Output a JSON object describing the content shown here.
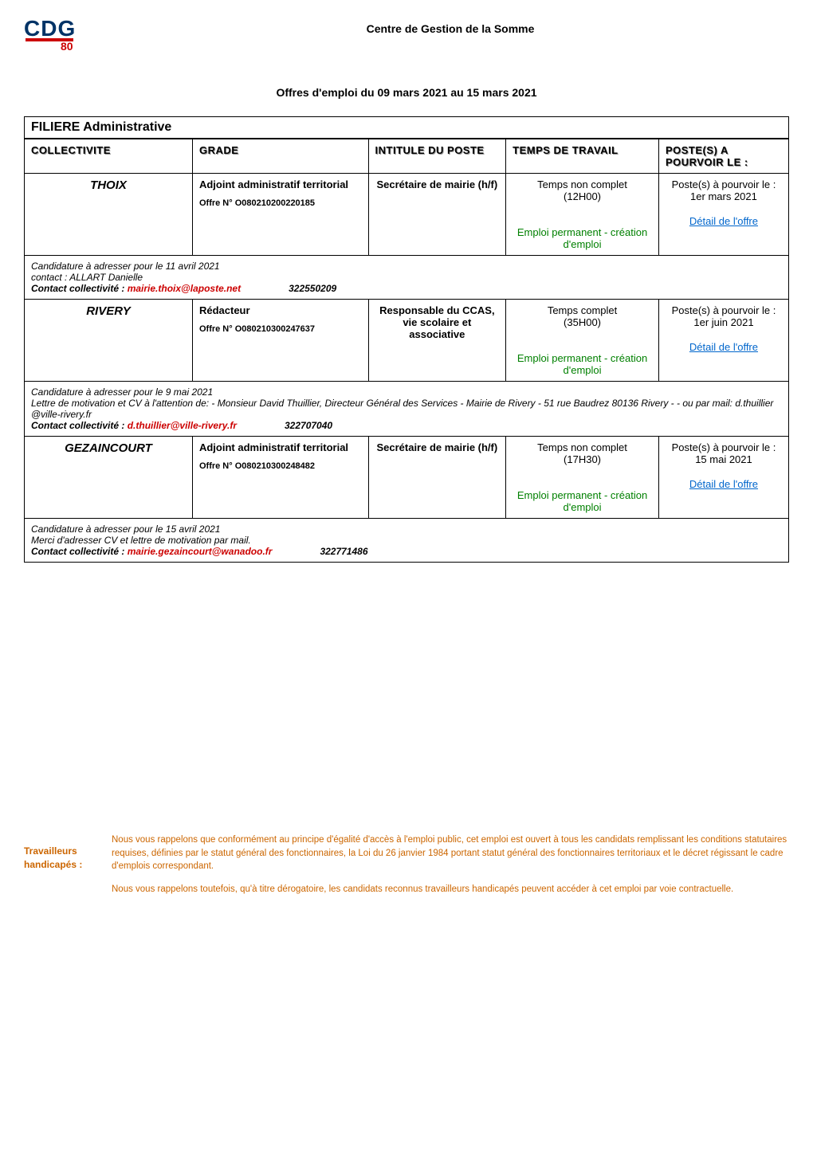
{
  "header": {
    "logo_text": "CDG",
    "logo_sub": "80",
    "doc_title": "Centre de Gestion de la Somme",
    "doc_subtitle": "Offres d'emploi du 09 mars 2021 au 15 mars 2021"
  },
  "filiere_label": "FILIERE Administrative",
  "columns": {
    "col1": "COLLECTIVITE",
    "col2": "GRADE",
    "col3": "INTITULE DU POSTE",
    "col4": "TEMPS DE TRAVAIL",
    "col5": "POSTE(S) A POURVOIR LE :"
  },
  "jobs": [
    {
      "collectivite": "THOIX",
      "grade": "Adjoint administratif territorial",
      "offre_num": "Offre N° O080210200220185",
      "intitule": "Secrétaire de mairie (h/f)",
      "temps": "Temps non complet",
      "temps_detail": "(12H00)",
      "emploi": "Emploi permanent - création d'emploi",
      "poste_line1": "Poste(s) à pourvoir le :",
      "poste_date": "1er mars 2021",
      "detail_link": "Détail de l'offre",
      "candidature_line1": "Candidature à adresser pour le 11 avril 2021",
      "candidature_line2_prefix": "contact : ALLART Danielle",
      "contact_label": "Contact collectivité : ",
      "contact_email": "mairie.thoix@laposte.net",
      "ref_code": "322550209"
    },
    {
      "collectivite": "RIVERY",
      "grade": "Rédacteur",
      "offre_num": "Offre N° O080210300247637",
      "intitule": "Responsable du CCAS, vie scolaire et associative",
      "temps": "Temps complet",
      "temps_detail": "(35H00)",
      "emploi": "Emploi permanent - création d'emploi",
      "poste_line1": "Poste(s) à pourvoir le :",
      "poste_date": "1er juin 2021",
      "detail_link": "Détail de l'offre",
      "candidature_line1": "Candidature à adresser pour le 9 mai 2021",
      "candidature_line2_prefix": " Lettre de motivation et CV à l'attention de: - Monsieur David Thuillier, Directeur Général des Services - Mairie de Rivery  - 51 rue Baudrez  80136 Rivery -  - ou par mail: d.thuillier @ville-rivery.fr",
      "contact_label": "Contact collectivité : ",
      "contact_email": "d.thuillier@ville-rivery.fr",
      "ref_code": "322707040"
    },
    {
      "collectivite": "GEZAINCOURT",
      "grade": "Adjoint administratif territorial",
      "offre_num": "Offre N° O080210300248482",
      "intitule": "Secrétaire de mairie (h/f)",
      "temps": "Temps non complet",
      "temps_detail": "(17H30)",
      "emploi": "Emploi permanent - création d'emploi",
      "poste_line1": "Poste(s) à pourvoir le :",
      "poste_date": "15 mai 2021",
      "detail_link": "Détail de l'offre",
      "candidature_line1": "Candidature à adresser pour le 15 avril 2021",
      "candidature_line2_prefix": " Merci d'adresser CV et lettre de motivation par mail.",
      "contact_label": "Contact collectivité : ",
      "contact_email": "mairie.gezaincourt@wanadoo.fr",
      "ref_code": "322771486"
    }
  ],
  "footer": {
    "left_line1": "Travailleurs",
    "left_line2": "handicapés :",
    "para1": "Nous vous rappelons que conformément au principe d'égalité d'accès à l'emploi public, cet emploi est ouvert à tous les candidats remplissant les conditions statutaires requises, définies par le statut général des fonctionnaires, la Loi du 26 janvier 1984 portant statut général des fonctionnaires territoriaux et le décret régissant le cadre d'emplois correspondant.",
    "para2": "Nous vous rappelons toutefois, qu'à titre dérogatoire, les candidats reconnus travailleurs handicapés peuvent accéder à cet emploi par voie contractuelle."
  },
  "colors": {
    "link": "#0066cc",
    "green": "#008000",
    "red_email": "#cc0000",
    "footer_orange": "#cc6600",
    "logo_blue": "#003366"
  }
}
